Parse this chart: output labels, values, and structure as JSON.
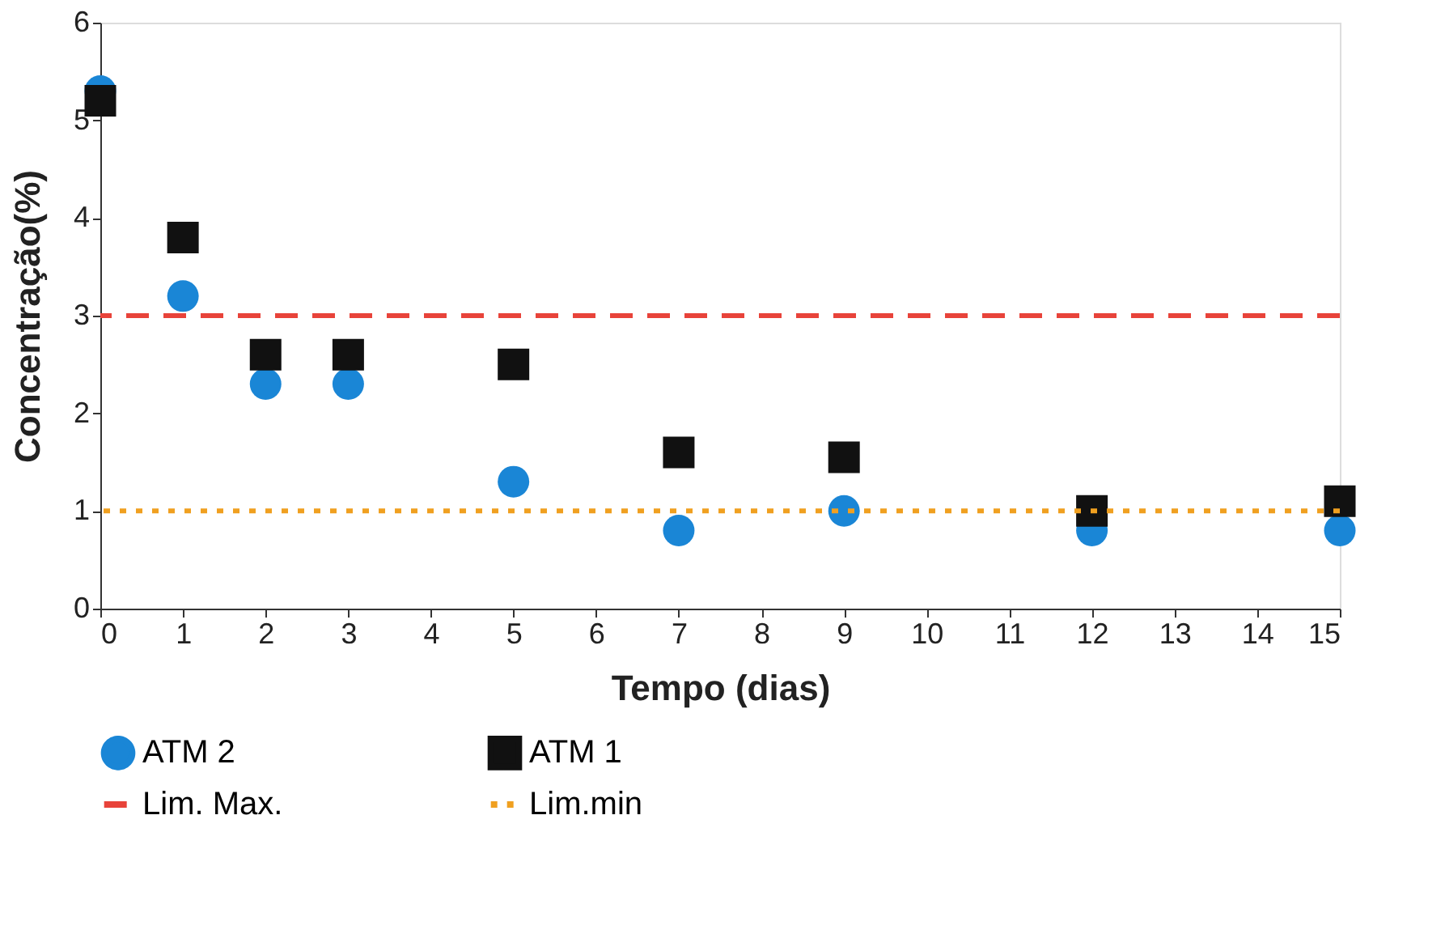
{
  "chart_data": {
    "type": "scatter",
    "xlabel": "Tempo (dias)",
    "ylabel": "Concentração(%)",
    "x": [
      0,
      1,
      2,
      3,
      5,
      7,
      9,
      12,
      15
    ],
    "series": [
      {
        "name": "ATM 2",
        "color": "#1a86d6",
        "marker": "circle",
        "values": [
          5.3,
          3.2,
          2.3,
          2.3,
          1.3,
          0.8,
          1.0,
          0.8,
          0.8
        ]
      },
      {
        "name": "ATM 1",
        "color": "#111111",
        "marker": "square",
        "values": [
          5.2,
          3.8,
          2.6,
          2.6,
          2.5,
          1.6,
          1.55,
          1.0,
          1.1
        ]
      }
    ],
    "ref_lines": [
      {
        "axis": "y",
        "value": 3,
        "label": "Lim. Max.",
        "color": "#e8433a",
        "line_style": "dashed"
      },
      {
        "axis": "y",
        "value": 1,
        "label": "Lim.min",
        "color": "#f0a020",
        "line_style": "dotted"
      }
    ],
    "xlim": [
      0,
      15
    ],
    "xticks": [
      0,
      1,
      2,
      3,
      4,
      5,
      6,
      7,
      8,
      9,
      10,
      11,
      12,
      13,
      14,
      15
    ],
    "ylim": [
      0,
      6
    ],
    "yticks": [
      0,
      1,
      2,
      3,
      4,
      5,
      6
    ],
    "grid": false,
    "legend": "bottom"
  }
}
